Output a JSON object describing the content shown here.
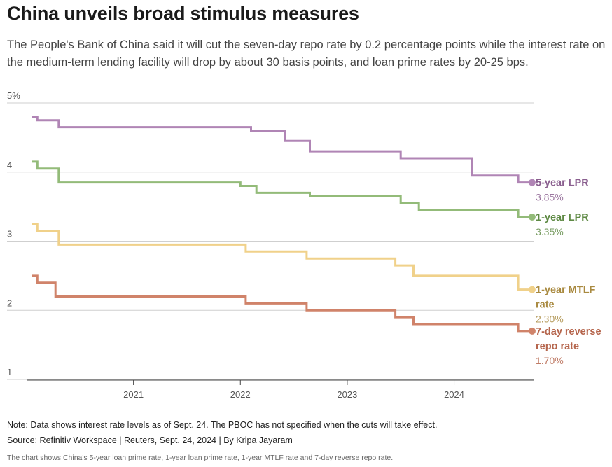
{
  "title": "China unveils broad stimulus measures",
  "subtitle": "The People's Bank of China said it will cut the seven-day repo rate by 0.2 percentage points while the interest rate on the medium-term lending facility will drop by about 30 basis points, and loan prime rates by 20-25 bps.",
  "note": "Note: Data shows interest rate levels as of Sept. 24. The PBOC has not specified when the cuts will take effect.",
  "source": "Source: Refinitiv Workspace | Reuters, Sept. 24, 2024 | By Kripa Jayaram",
  "alt_text": "The chart shows China's 5-year loan prime rate, 1-year loan prime rate, 1-year MTLF rate and 7-day reverse repo rate.",
  "chart_data": {
    "type": "line",
    "step": true,
    "xlim": [
      2020.0,
      2024.75
    ],
    "ylim": [
      1,
      5
    ],
    "y_ticks": [
      {
        "value": 5,
        "label": "5%"
      },
      {
        "value": 4,
        "label": "4"
      },
      {
        "value": 3,
        "label": "3"
      },
      {
        "value": 2,
        "label": "2"
      },
      {
        "value": 1,
        "label": "1"
      }
    ],
    "x_ticks": [
      {
        "value": 2021,
        "label": "2021"
      },
      {
        "value": 2022,
        "label": "2022"
      },
      {
        "value": 2023,
        "label": "2023"
      },
      {
        "value": 2024,
        "label": "2024"
      }
    ],
    "grid": "horizontal",
    "series": [
      {
        "name": "5-year LPR",
        "label_lines": [
          "5-year LPR"
        ],
        "end_value_label": "3.85%",
        "color": "#b085b5",
        "label_color": "#8a5f8f",
        "points": [
          [
            2020.05,
            4.8
          ],
          [
            2020.1,
            4.75
          ],
          [
            2020.3,
            4.65
          ],
          [
            2022.1,
            4.6
          ],
          [
            2022.42,
            4.45
          ],
          [
            2022.65,
            4.3
          ],
          [
            2023.5,
            4.2
          ],
          [
            2024.17,
            3.95
          ],
          [
            2024.6,
            3.85
          ],
          [
            2024.73,
            3.85
          ]
        ]
      },
      {
        "name": "1-year LPR",
        "label_lines": [
          "1-year LPR"
        ],
        "end_value_label": "3.35%",
        "color": "#93bb79",
        "label_color": "#5f8a45",
        "points": [
          [
            2020.05,
            4.15
          ],
          [
            2020.1,
            4.05
          ],
          [
            2020.3,
            3.85
          ],
          [
            2022.0,
            3.8
          ],
          [
            2022.15,
            3.7
          ],
          [
            2022.65,
            3.65
          ],
          [
            2023.5,
            3.55
          ],
          [
            2023.67,
            3.45
          ],
          [
            2024.6,
            3.35
          ],
          [
            2024.73,
            3.35
          ]
        ]
      },
      {
        "name": "1-year MTLF rate",
        "label_lines": [
          "1-year MTLF",
          "rate"
        ],
        "end_value_label": "2.30%",
        "color": "#f0d18a",
        "label_color": "#a98a40",
        "points": [
          [
            2020.05,
            3.25
          ],
          [
            2020.1,
            3.15
          ],
          [
            2020.3,
            2.95
          ],
          [
            2022.05,
            2.85
          ],
          [
            2022.62,
            2.75
          ],
          [
            2023.45,
            2.65
          ],
          [
            2023.62,
            2.5
          ],
          [
            2024.6,
            2.3
          ],
          [
            2024.73,
            2.3
          ]
        ]
      },
      {
        "name": "7-day reverse repo rate",
        "label_lines": [
          "7-day reverse",
          "repo rate"
        ],
        "end_value_label": "1.70%",
        "color": "#d0836a",
        "label_color": "#b5654c",
        "points": [
          [
            2020.05,
            2.5
          ],
          [
            2020.1,
            2.4
          ],
          [
            2020.27,
            2.2
          ],
          [
            2022.05,
            2.1
          ],
          [
            2022.62,
            2.0
          ],
          [
            2023.45,
            1.9
          ],
          [
            2023.62,
            1.8
          ],
          [
            2024.6,
            1.7
          ],
          [
            2024.73,
            1.7
          ]
        ]
      }
    ]
  }
}
